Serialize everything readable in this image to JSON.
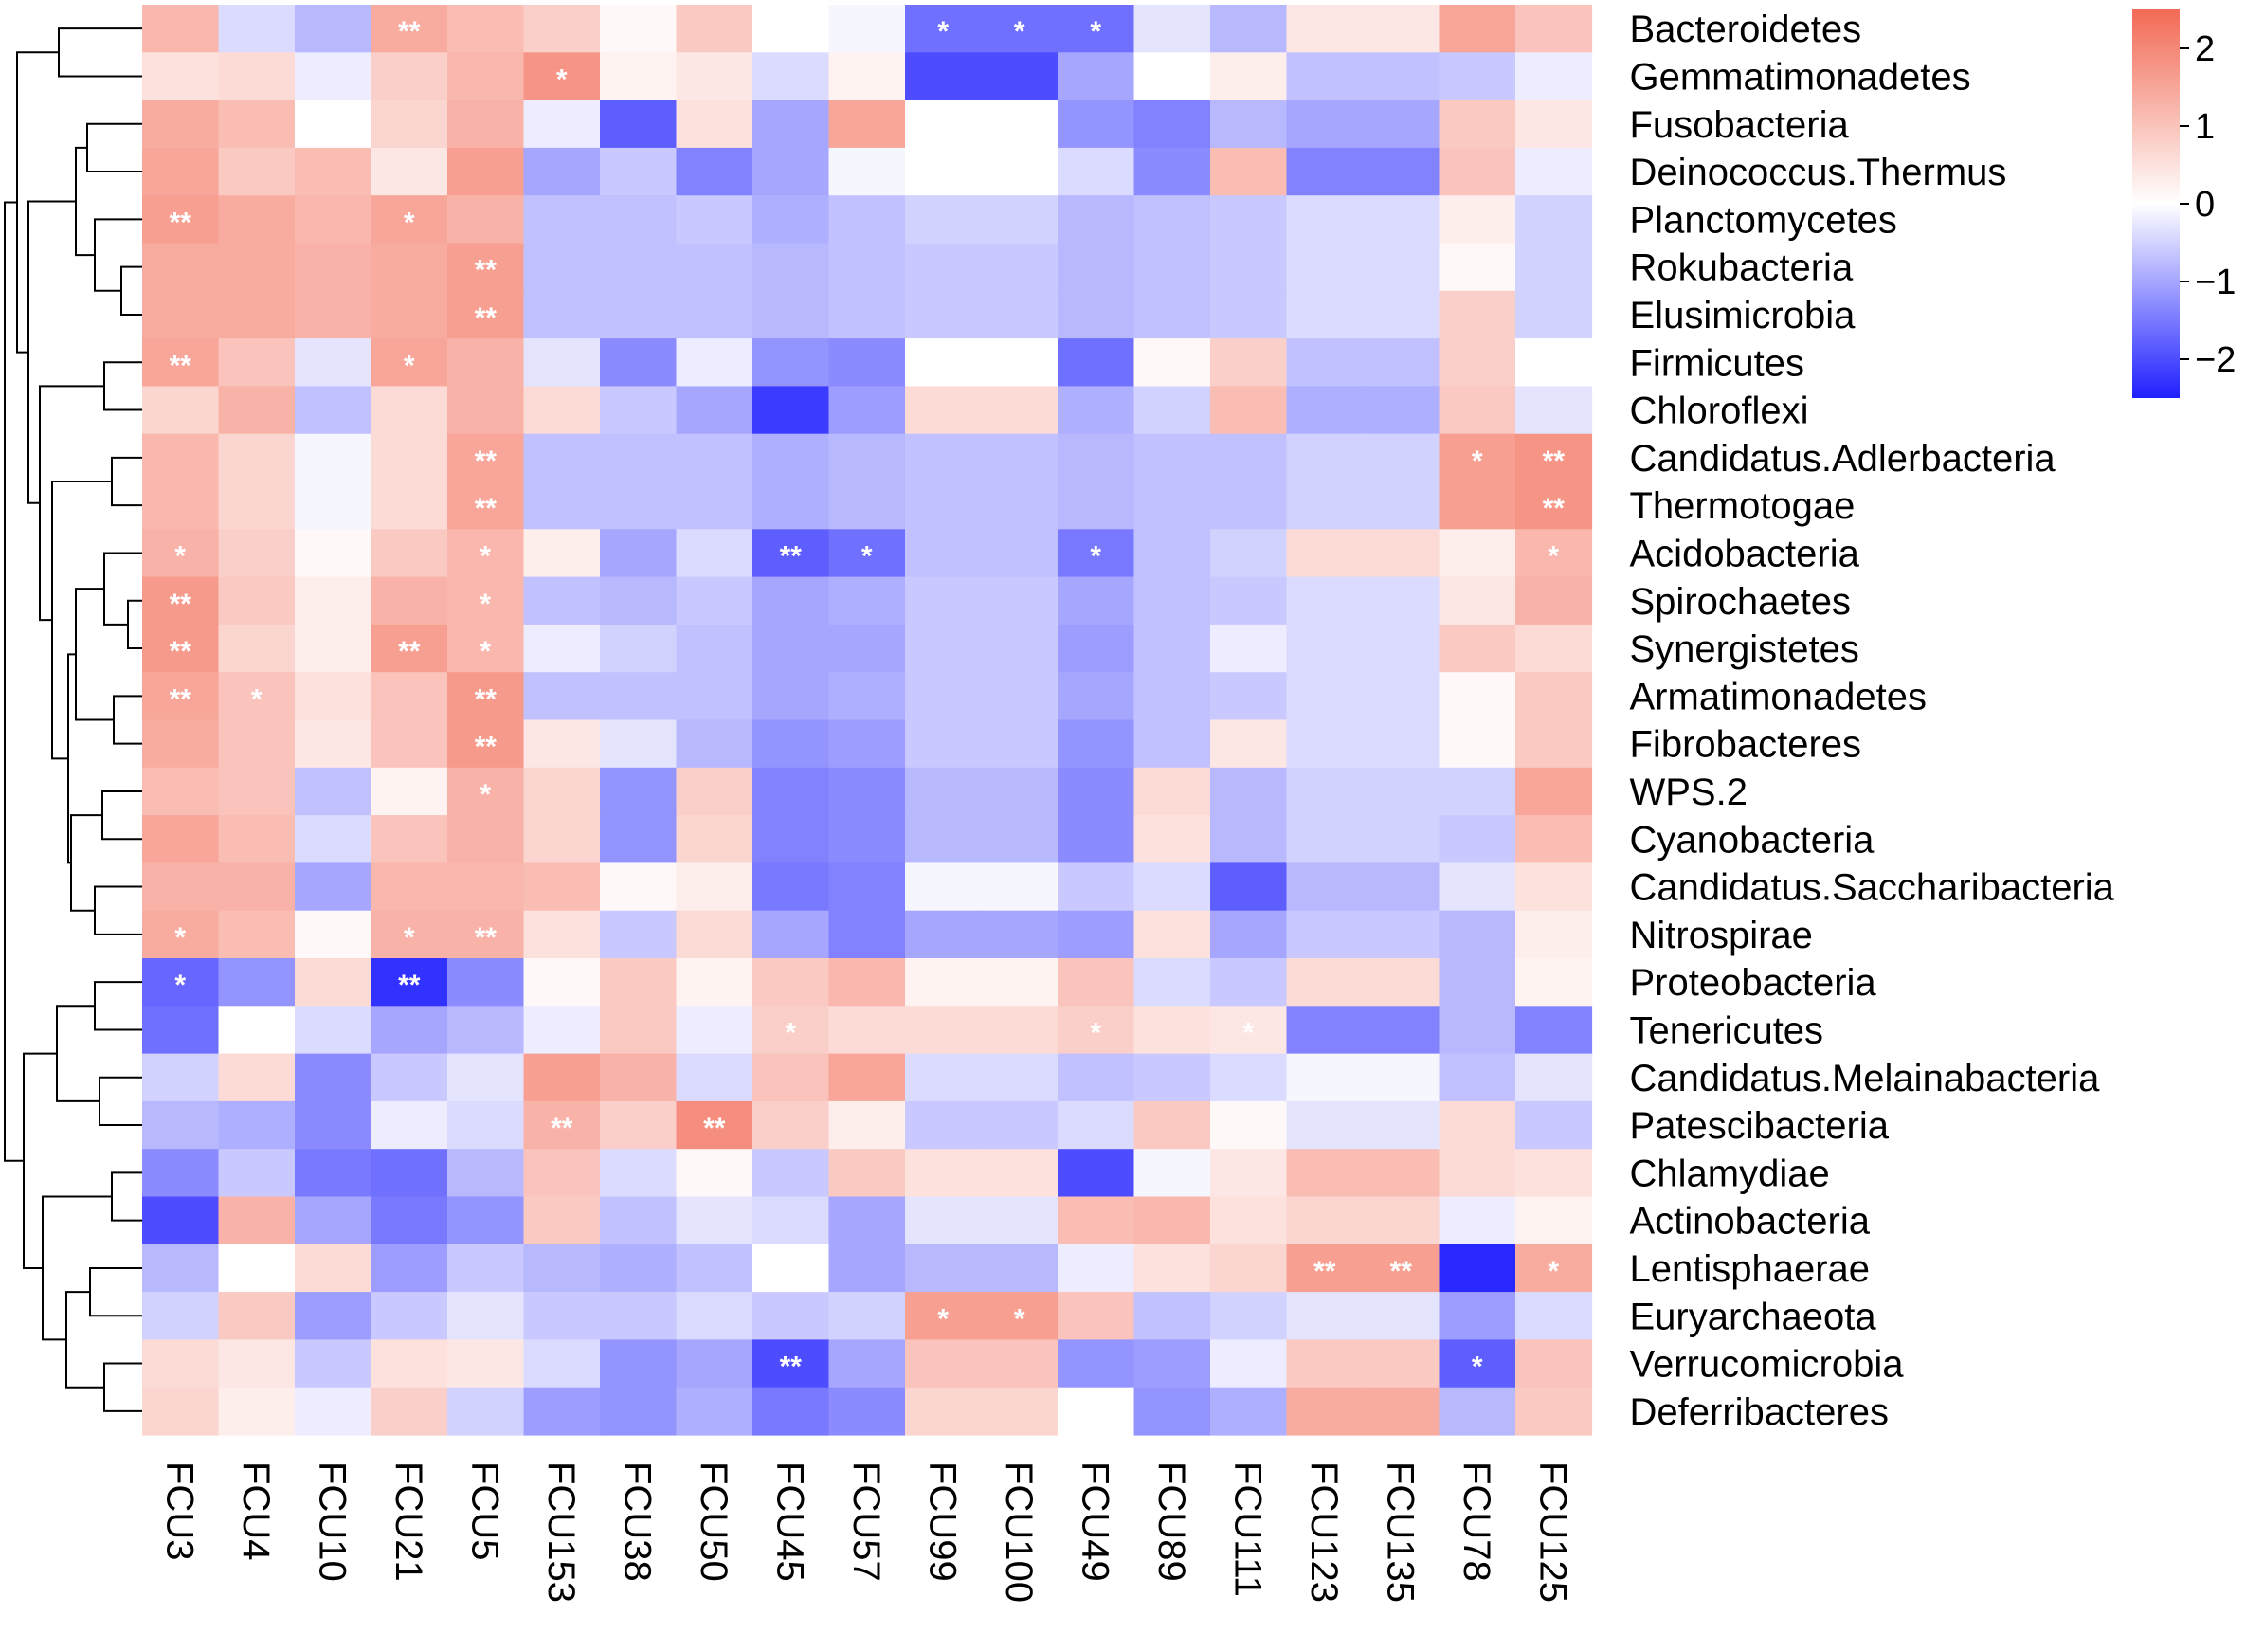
{
  "chart_data": {
    "type": "heatmap",
    "rows": [
      "Bacteroidetes",
      "Gemmatimonadetes",
      "Fusobacteria",
      "Deinococcus.Thermus",
      "Planctomycetes",
      "Rokubacteria",
      "Elusimicrobia",
      "Firmicutes",
      "Chloroflexi",
      "Candidatus.Adlerbacteria",
      "Thermotogae",
      "Acidobacteria",
      "Spirochaetes",
      "Synergistetes",
      "Armatimonadetes",
      "Fibrobacteres",
      "WPS.2",
      "Cyanobacteria",
      "Candidatus.Saccharibacteria",
      "Nitrospirae",
      "Proteobacteria",
      "Tenericutes",
      "Candidatus.Melainabacteria",
      "Patescibacteria",
      "Chlamydiae",
      "Actinobacteria",
      "Lentisphaerae",
      "Euryarchaeota",
      "Verrucomicrobia",
      "Deferribacteres"
    ],
    "columns": [
      "FCU3",
      "FCU4",
      "FCU10",
      "FCU21",
      "FCU5",
      "FCU153",
      "FCU38",
      "FCU50",
      "FCU45",
      "FCU57",
      "FCU99",
      "FCU100",
      "FCU49",
      "FCU89",
      "FCU111",
      "FCU123",
      "FCU135",
      "FCU78",
      "FCU125"
    ],
    "values": [
      [
        1.2,
        -0.4,
        -0.8,
        1.4,
        1.1,
        0.8,
        0.1,
        0.9,
        0.0,
        -0.1,
        -1.6,
        -1.6,
        -1.6,
        -0.3,
        -0.8,
        0.4,
        0.4,
        1.5,
        1.0
      ],
      [
        0.5,
        0.6,
        -0.2,
        0.8,
        1.2,
        1.8,
        0.2,
        0.4,
        -0.4,
        0.2,
        -2.0,
        -2.0,
        -1.0,
        0.0,
        0.3,
        -0.7,
        -0.7,
        -0.6,
        -0.2
      ],
      [
        1.4,
        1.1,
        0.0,
        0.7,
        1.3,
        -0.2,
        -1.8,
        0.5,
        -1.0,
        1.5,
        0.0,
        0.0,
        -1.2,
        -1.4,
        -0.8,
        -1.0,
        -1.0,
        0.9,
        0.4
      ],
      [
        1.5,
        0.9,
        1.1,
        0.4,
        1.6,
        -1.0,
        -0.6,
        -1.4,
        -1.0,
        -0.1,
        0.0,
        0.0,
        -0.4,
        -1.3,
        1.1,
        -1.4,
        -1.4,
        1.0,
        -0.2
      ],
      [
        1.6,
        1.4,
        1.2,
        1.5,
        1.3,
        -0.7,
        -0.7,
        -0.6,
        -0.9,
        -0.7,
        -0.5,
        -0.5,
        -0.8,
        -0.7,
        -0.6,
        -0.4,
        -0.4,
        0.3,
        -0.5
      ],
      [
        1.4,
        1.4,
        1.3,
        1.4,
        1.6,
        -0.7,
        -0.7,
        -0.7,
        -0.8,
        -0.7,
        -0.6,
        -0.6,
        -0.8,
        -0.7,
        -0.6,
        -0.4,
        -0.4,
        0.1,
        -0.5
      ],
      [
        1.4,
        1.4,
        1.3,
        1.4,
        1.6,
        -0.7,
        -0.7,
        -0.7,
        -0.8,
        -0.7,
        -0.6,
        -0.6,
        -0.8,
        -0.7,
        -0.6,
        -0.4,
        -0.4,
        0.8,
        -0.5
      ],
      [
        1.5,
        1.0,
        -0.3,
        1.5,
        1.3,
        -0.3,
        -1.3,
        -0.2,
        -1.2,
        -1.3,
        0.0,
        0.0,
        -1.6,
        0.1,
        0.8,
        -0.7,
        -0.7,
        0.8,
        0.0
      ],
      [
        0.7,
        1.3,
        -0.7,
        0.6,
        1.3,
        0.6,
        -0.6,
        -1.0,
        -2.2,
        -1.1,
        0.6,
        0.6,
        -0.9,
        -0.5,
        1.1,
        -0.9,
        -0.9,
        0.9,
        -0.3
      ],
      [
        1.2,
        0.7,
        -0.1,
        0.6,
        1.5,
        -0.7,
        -0.7,
        -0.7,
        -0.9,
        -0.8,
        -0.7,
        -0.7,
        -0.8,
        -0.7,
        -0.7,
        -0.5,
        -0.5,
        1.6,
        1.8
      ],
      [
        1.2,
        0.7,
        -0.1,
        0.6,
        1.5,
        -0.7,
        -0.7,
        -0.7,
        -0.9,
        -0.8,
        -0.7,
        -0.7,
        -0.8,
        -0.7,
        -0.7,
        -0.5,
        -0.5,
        1.6,
        1.8
      ],
      [
        1.3,
        0.8,
        0.1,
        0.9,
        1.2,
        0.3,
        -1.0,
        -0.4,
        -1.8,
        -1.6,
        -0.7,
        -0.7,
        -1.5,
        -0.7,
        -0.5,
        0.6,
        0.6,
        0.3,
        1.2
      ],
      [
        1.7,
        0.9,
        0.3,
        1.3,
        1.2,
        -0.7,
        -0.8,
        -0.6,
        -1.0,
        -0.9,
        -0.6,
        -0.6,
        -1.0,
        -0.7,
        -0.6,
        -0.4,
        -0.4,
        0.4,
        1.3
      ],
      [
        1.7,
        0.7,
        0.3,
        1.6,
        1.2,
        -0.2,
        -0.5,
        -0.7,
        -1.0,
        -1.0,
        -0.6,
        -0.6,
        -1.1,
        -0.7,
        -0.2,
        -0.4,
        -0.4,
        0.9,
        0.6
      ],
      [
        1.5,
        1.0,
        0.5,
        1.0,
        1.7,
        -0.7,
        -0.7,
        -0.7,
        -1.0,
        -0.9,
        -0.6,
        -0.6,
        -1.0,
        -0.7,
        -0.6,
        -0.4,
        -0.4,
        0.1,
        0.9
      ],
      [
        1.4,
        1.0,
        0.4,
        1.0,
        1.7,
        0.4,
        -0.3,
        -0.8,
        -1.2,
        -1.1,
        -0.6,
        -0.6,
        -1.2,
        -0.7,
        0.4,
        -0.4,
        -0.4,
        0.1,
        0.9
      ],
      [
        1.1,
        1.0,
        -0.7,
        0.2,
        1.3,
        0.7,
        -1.2,
        0.8,
        -1.4,
        -1.3,
        -0.8,
        -0.8,
        -1.3,
        0.6,
        -0.8,
        -0.5,
        -0.5,
        -0.5,
        1.5
      ],
      [
        1.5,
        1.1,
        -0.4,
        1.0,
        1.3,
        0.7,
        -1.2,
        0.7,
        -1.4,
        -1.3,
        -0.8,
        -0.8,
        -1.3,
        0.5,
        -0.8,
        -0.5,
        -0.5,
        -0.6,
        1.1
      ],
      [
        1.3,
        1.3,
        -1.0,
        1.2,
        1.2,
        1.1,
        0.1,
        0.3,
        -1.5,
        -1.4,
        -0.1,
        -0.1,
        -0.6,
        -0.4,
        -1.8,
        -0.8,
        -0.8,
        -0.3,
        0.5
      ],
      [
        1.4,
        1.1,
        0.1,
        1.3,
        1.3,
        0.5,
        -0.6,
        0.6,
        -1.0,
        -1.4,
        -1.0,
        -1.0,
        -1.1,
        0.5,
        -1.0,
        -0.6,
        -0.6,
        -0.8,
        0.3
      ],
      [
        -1.7,
        -1.2,
        0.6,
        -2.3,
        -1.3,
        0.1,
        0.9,
        0.2,
        0.9,
        1.2,
        0.2,
        0.2,
        1.0,
        -0.4,
        -0.6,
        0.6,
        0.6,
        -0.8,
        0.2
      ],
      [
        -1.6,
        0.0,
        -0.4,
        -1.0,
        -0.8,
        -0.2,
        0.9,
        -0.2,
        0.8,
        0.6,
        0.6,
        0.6,
        0.8,
        0.5,
        0.4,
        -1.4,
        -1.4,
        -0.8,
        -1.4
      ],
      [
        -0.5,
        0.6,
        -1.3,
        -0.6,
        -0.3,
        1.6,
        1.3,
        -0.4,
        1.0,
        1.5,
        -0.4,
        -0.4,
        -0.7,
        -0.6,
        -0.4,
        -0.1,
        -0.1,
        -0.7,
        -0.3
      ],
      [
        -0.8,
        -0.9,
        -1.3,
        -0.2,
        -0.4,
        1.3,
        0.8,
        1.9,
        0.8,
        0.3,
        -0.6,
        -0.6,
        -0.4,
        0.9,
        0.1,
        -0.3,
        -0.3,
        0.6,
        -0.6
      ],
      [
        -1.3,
        -0.6,
        -1.5,
        -1.6,
        -0.8,
        1.0,
        -0.4,
        0.1,
        -0.6,
        0.9,
        0.5,
        0.5,
        -2.0,
        -0.1,
        0.4,
        1.1,
        1.1,
        0.6,
        0.5
      ],
      [
        -2.0,
        1.3,
        -1.0,
        -1.5,
        -1.2,
        0.9,
        -0.7,
        -0.3,
        -0.4,
        -1.0,
        -0.3,
        -0.3,
        1.1,
        1.2,
        0.5,
        0.7,
        0.7,
        -0.2,
        0.2
      ],
      [
        -0.8,
        0.0,
        0.6,
        -1.1,
        -0.6,
        -0.8,
        -0.9,
        -0.7,
        0.0,
        -1.0,
        -0.8,
        -0.8,
        -0.2,
        0.5,
        0.7,
        1.6,
        1.6,
        -2.4,
        1.4
      ],
      [
        -0.5,
        0.9,
        -1.1,
        -0.6,
        -0.3,
        -0.6,
        -0.6,
        -0.4,
        -0.6,
        -0.5,
        1.6,
        1.6,
        1.0,
        -0.7,
        -0.5,
        -0.3,
        -0.3,
        -1.1,
        -0.4
      ],
      [
        0.6,
        0.4,
        -0.6,
        0.5,
        0.4,
        -0.4,
        -1.2,
        -1.0,
        -2.0,
        -1.0,
        1.0,
        1.0,
        -1.2,
        -1.1,
        -0.2,
        0.9,
        0.9,
        -1.8,
        1.0
      ],
      [
        0.7,
        0.3,
        -0.2,
        0.8,
        -0.5,
        -1.1,
        -1.2,
        -0.9,
        -1.5,
        -1.3,
        0.7,
        0.7,
        0.0,
        -1.2,
        -0.9,
        1.4,
        1.4,
        -0.8,
        0.9
      ]
    ],
    "annotations": [
      {
        "row": "Bacteroidetes",
        "col": "FCU21",
        "text": "**"
      },
      {
        "row": "Bacteroidetes",
        "col": "FCU99",
        "text": "*"
      },
      {
        "row": "Bacteroidetes",
        "col": "FCU100",
        "text": "*"
      },
      {
        "row": "Bacteroidetes",
        "col": "FCU49",
        "text": "*"
      },
      {
        "row": "Gemmatimonadetes",
        "col": "FCU153",
        "text": "*"
      },
      {
        "row": "Planctomycetes",
        "col": "FCU3",
        "text": "**"
      },
      {
        "row": "Planctomycetes",
        "col": "FCU21",
        "text": "*"
      },
      {
        "row": "Rokubacteria",
        "col": "FCU5",
        "text": "**"
      },
      {
        "row": "Elusimicrobia",
        "col": "FCU5",
        "text": "**"
      },
      {
        "row": "Firmicutes",
        "col": "FCU3",
        "text": "**"
      },
      {
        "row": "Firmicutes",
        "col": "FCU21",
        "text": "*"
      },
      {
        "row": "Candidatus.Adlerbacteria",
        "col": "FCU5",
        "text": "**"
      },
      {
        "row": "Candidatus.Adlerbacteria",
        "col": "FCU78",
        "text": "*"
      },
      {
        "row": "Candidatus.Adlerbacteria",
        "col": "FCU125",
        "text": "**"
      },
      {
        "row": "Thermotogae",
        "col": "FCU5",
        "text": "**"
      },
      {
        "row": "Thermotogae",
        "col": "FCU125",
        "text": "**"
      },
      {
        "row": "Acidobacteria",
        "col": "FCU3",
        "text": "*"
      },
      {
        "row": "Acidobacteria",
        "col": "FCU5",
        "text": "*"
      },
      {
        "row": "Acidobacteria",
        "col": "FCU45",
        "text": "**"
      },
      {
        "row": "Acidobacteria",
        "col": "FCU57",
        "text": "*"
      },
      {
        "row": "Acidobacteria",
        "col": "FCU49",
        "text": "*"
      },
      {
        "row": "Acidobacteria",
        "col": "FCU125",
        "text": "*"
      },
      {
        "row": "Spirochaetes",
        "col": "FCU3",
        "text": "**"
      },
      {
        "row": "Spirochaetes",
        "col": "FCU5",
        "text": "*"
      },
      {
        "row": "Synergistetes",
        "col": "FCU3",
        "text": "**"
      },
      {
        "row": "Synergistetes",
        "col": "FCU21",
        "text": "**"
      },
      {
        "row": "Synergistetes",
        "col": "FCU5",
        "text": "*"
      },
      {
        "row": "Armatimonadetes",
        "col": "FCU3",
        "text": "**"
      },
      {
        "row": "Armatimonadetes",
        "col": "FCU4",
        "text": "*"
      },
      {
        "row": "Armatimonadetes",
        "col": "FCU5",
        "text": "**"
      },
      {
        "row": "Fibrobacteres",
        "col": "FCU5",
        "text": "**"
      },
      {
        "row": "WPS.2",
        "col": "FCU5",
        "text": "*"
      },
      {
        "row": "Nitrospirae",
        "col": "FCU3",
        "text": "*"
      },
      {
        "row": "Nitrospirae",
        "col": "FCU21",
        "text": "*"
      },
      {
        "row": "Nitrospirae",
        "col": "FCU5",
        "text": "**"
      },
      {
        "row": "Proteobacteria",
        "col": "FCU3",
        "text": "*"
      },
      {
        "row": "Proteobacteria",
        "col": "FCU21",
        "text": "**"
      },
      {
        "row": "Tenericutes",
        "col": "FCU45",
        "text": "*"
      },
      {
        "row": "Tenericutes",
        "col": "FCU49",
        "text": "*"
      },
      {
        "row": "Tenericutes",
        "col": "FCU111",
        "text": "*"
      },
      {
        "row": "Patescibacteria",
        "col": "FCU153",
        "text": "**"
      },
      {
        "row": "Patescibacteria",
        "col": "FCU50",
        "text": "**"
      },
      {
        "row": "Lentisphaerae",
        "col": "FCU123",
        "text": "**"
      },
      {
        "row": "Lentisphaerae",
        "col": "FCU135",
        "text": "**"
      },
      {
        "row": "Lentisphaerae",
        "col": "FCU125",
        "text": "*"
      },
      {
        "row": "Euryarchaeota",
        "col": "FCU99",
        "text": "*"
      },
      {
        "row": "Euryarchaeota",
        "col": "FCU100",
        "text": "*"
      },
      {
        "row": "Verrucomicrobia",
        "col": "FCU45",
        "text": "**"
      },
      {
        "row": "Verrucomicrobia",
        "col": "FCU78",
        "text": "*"
      }
    ],
    "legend": {
      "ticks": [
        2,
        1,
        0,
        -1,
        -2
      ],
      "tick_labels": [
        "2",
        "1",
        "0",
        "−1",
        "−2"
      ],
      "range": [
        -2.5,
        2.5
      ],
      "placement": "top-right"
    },
    "color_scale": {
      "low": "#2020ff",
      "mid": "#ffffff",
      "high": "#f26a55"
    },
    "row_dendrogram": true
  }
}
